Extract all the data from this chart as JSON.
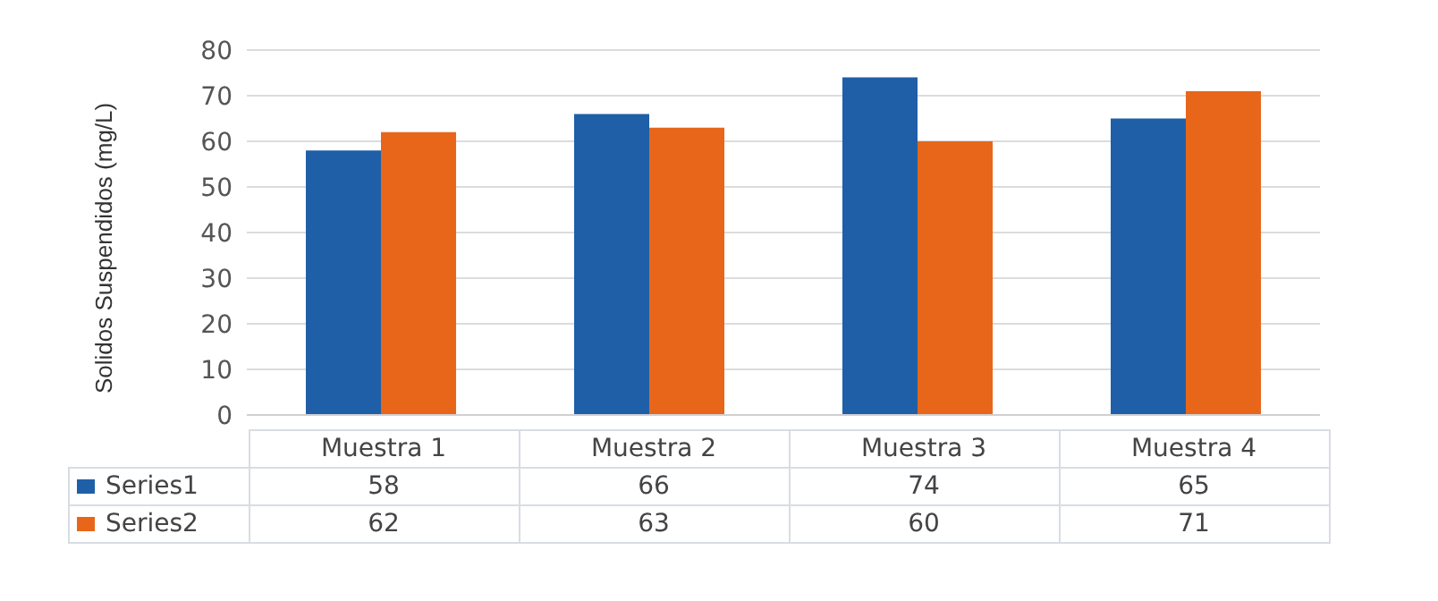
{
  "chart_data": {
    "type": "bar",
    "ylabel": "Solidos Suspendidos (mg/L)",
    "categories": [
      "Muestra 1",
      "Muestra 2",
      "Muestra 3",
      "Muestra 4"
    ],
    "series": [
      {
        "name": "Series1",
        "color": "#1f5fa8",
        "values": [
          58,
          66,
          74,
          65
        ]
      },
      {
        "name": "Series2",
        "color": "#e8661a",
        "values": [
          62,
          63,
          60,
          71
        ]
      }
    ],
    "ylim": [
      0,
      80
    ],
    "yticks": [
      0,
      10,
      20,
      30,
      40,
      50,
      60,
      70,
      80
    ],
    "grid": "y",
    "legend": "bottom",
    "data_labels": true
  }
}
